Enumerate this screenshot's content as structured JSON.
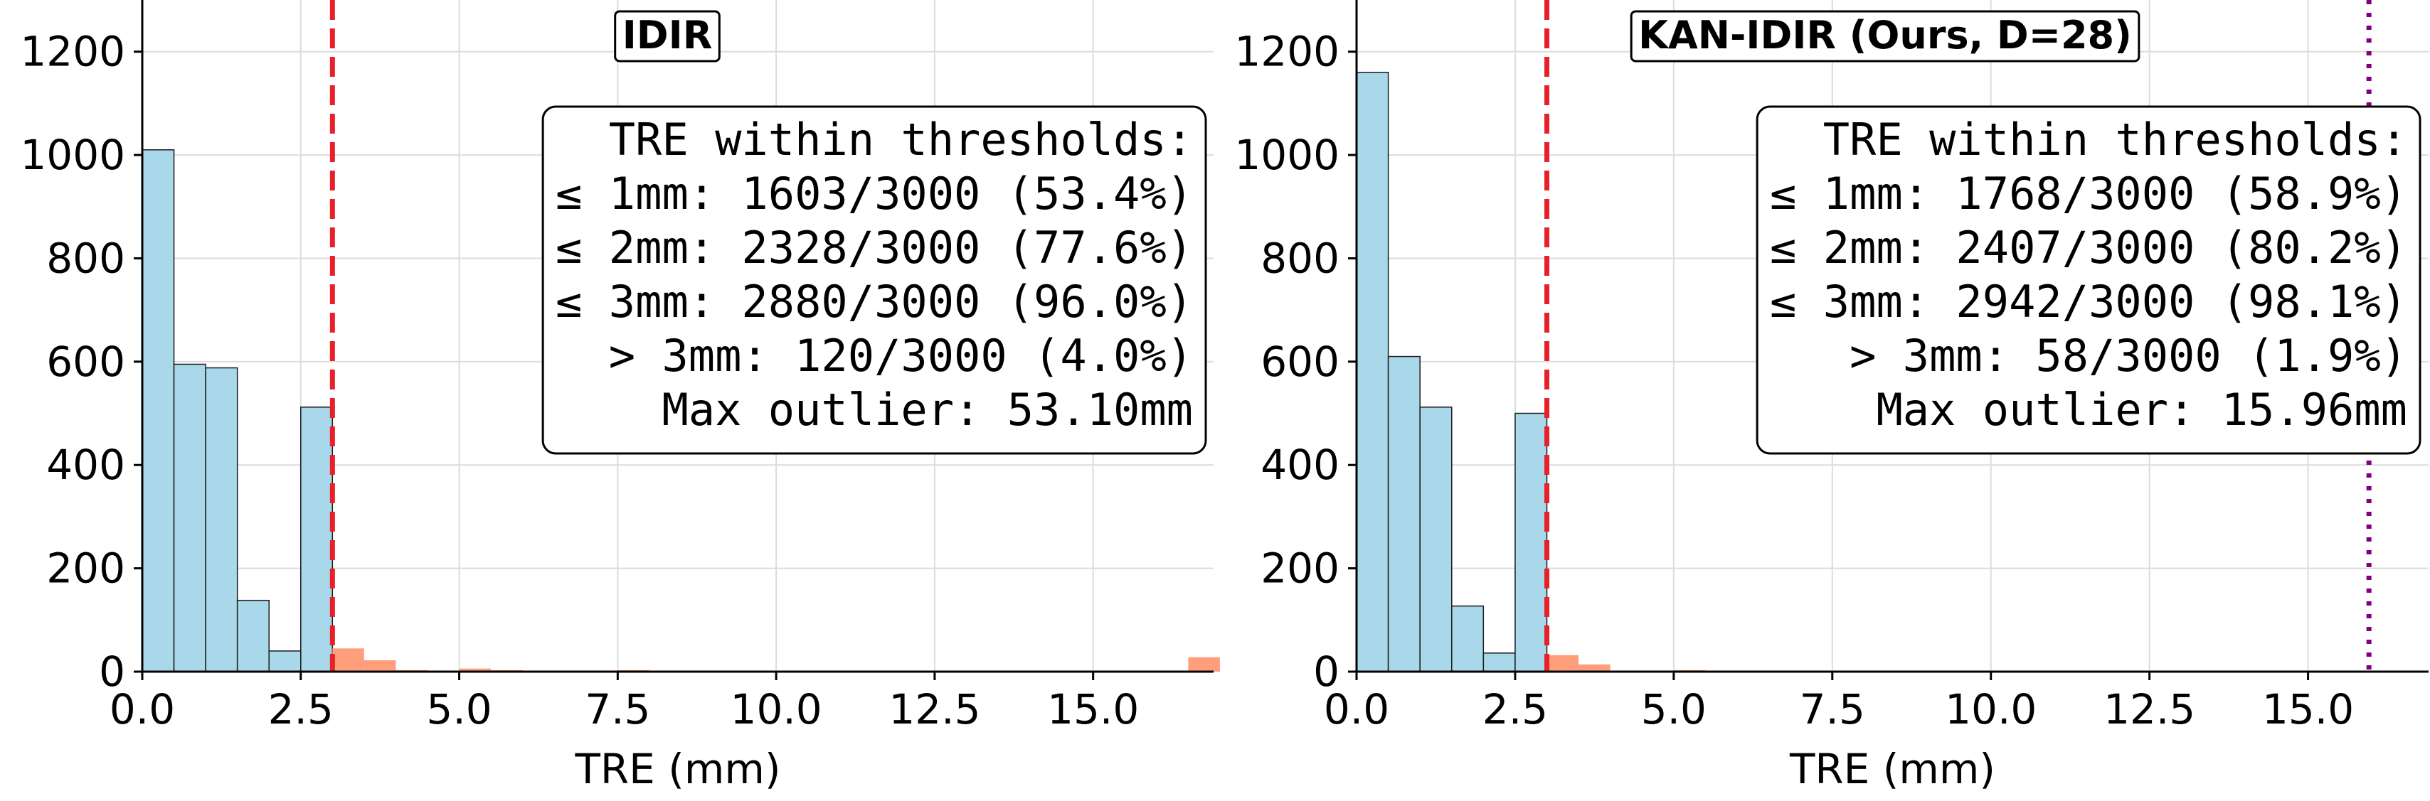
{
  "chart_data": [
    {
      "type": "bar",
      "title": "IDIR",
      "xlabel": "TRE (mm)",
      "ylabel": "",
      "xlim": [
        0,
        16.9
      ],
      "ylim": [
        0,
        1300
      ],
      "xticks": [
        "0.0",
        "2.5",
        "5.0",
        "7.5",
        "10.0",
        "12.5",
        "15.0"
      ],
      "yticks": [
        "0",
        "200",
        "400",
        "600",
        "800",
        "1000",
        "1200"
      ],
      "grid": true,
      "bin_width": 0.5,
      "threshold_line": 3.0,
      "bins_within": [
        {
          "x0": 0.0,
          "count": 1010
        },
        {
          "x0": 0.5,
          "count": 595
        },
        {
          "x0": 1.0,
          "count": 588
        },
        {
          "x0": 1.5,
          "count": 138
        },
        {
          "x0": 2.0,
          "count": 40
        },
        {
          "x0": 2.5,
          "count": 512
        }
      ],
      "bins_outlier": [
        {
          "x0": 3.0,
          "count": 45
        },
        {
          "x0": 3.5,
          "count": 22
        },
        {
          "x0": 4.0,
          "count": 3
        },
        {
          "x0": 5.0,
          "count": 6
        },
        {
          "x0": 5.5,
          "count": 3
        },
        {
          "x0": 7.5,
          "count": 3
        },
        {
          "x0": 8.0,
          "count": 2
        },
        {
          "x0": 10.0,
          "count": 2
        },
        {
          "x0": 12.5,
          "count": 1
        },
        {
          "x0": 14.5,
          "count": 1
        },
        {
          "x0": 16.5,
          "count": 28
        }
      ],
      "annotation": [
        "TRE within thresholds:",
        "≤ 1mm: 1603/3000 (53.4%)",
        "≤ 2mm: 2328/3000 (77.6%)",
        "≤ 3mm: 2880/3000 (96.0%)",
        "> 3mm: 120/3000 (4.0%)",
        "Max outlier: 53.10mm"
      ],
      "colors": {
        "within": "#a8d8ea",
        "outlier": "#ff9e7a",
        "threshold": "#e8202a"
      }
    },
    {
      "type": "bar",
      "title": "KAN-IDIR (Ours, D=28)",
      "xlabel": "TRE (mm)",
      "ylabel": "",
      "xlim": [
        0,
        16.9
      ],
      "ylim": [
        0,
        1300
      ],
      "xticks": [
        "0.0",
        "2.5",
        "5.0",
        "7.5",
        "10.0",
        "12.5",
        "15.0"
      ],
      "yticks": [
        "0",
        "200",
        "400",
        "600",
        "800",
        "1000",
        "1200"
      ],
      "grid": true,
      "bin_width": 0.5,
      "threshold_line": 3.0,
      "max_outlier_line": 15.96,
      "bins_within": [
        {
          "x0": 0.0,
          "count": 1160
        },
        {
          "x0": 0.5,
          "count": 610
        },
        {
          "x0": 1.0,
          "count": 512
        },
        {
          "x0": 1.5,
          "count": 127
        },
        {
          "x0": 2.0,
          "count": 36
        },
        {
          "x0": 2.5,
          "count": 500
        }
      ],
      "bins_outlier": [
        {
          "x0": 3.0,
          "count": 32
        },
        {
          "x0": 3.5,
          "count": 14
        },
        {
          "x0": 4.0,
          "count": 2
        },
        {
          "x0": 5.0,
          "count": 3
        },
        {
          "x0": 7.5,
          "count": 2
        },
        {
          "x0": 8.0,
          "count": 1
        },
        {
          "x0": 10.0,
          "count": 1
        },
        {
          "x0": 12.5,
          "count": 1
        },
        {
          "x0": 15.5,
          "count": 2
        }
      ],
      "annotation": [
        "TRE within thresholds:",
        "≤ 1mm: 1768/3000 (58.9%)",
        "≤ 2mm: 2407/3000 (80.2%)",
        "≤ 3mm: 2942/3000 (98.1%)",
        "> 3mm: 58/3000 (1.9%)",
        "Max outlier: 15.96mm"
      ],
      "colors": {
        "within": "#a8d8ea",
        "outlier": "#ff9e7a",
        "threshold": "#e8202a",
        "max_outlier": "#800080"
      }
    }
  ]
}
